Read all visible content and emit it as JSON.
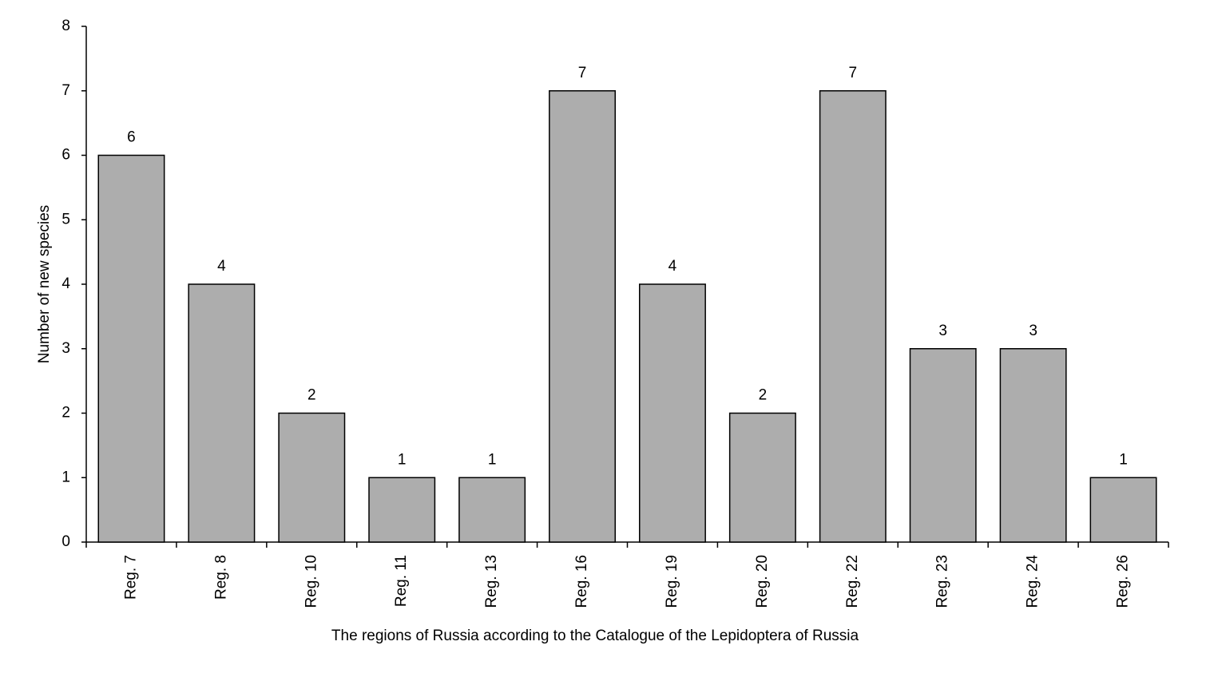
{
  "chart_data": {
    "type": "bar",
    "x_label": "The regions of Russia according to the Catalogue of the Lepidoptera of Russia",
    "y_label": "Number of new species",
    "categories": [
      "Reg. 7",
      "Reg. 8",
      "Reg. 10",
      "Reg. 11",
      "Reg. 13",
      "Reg. 16",
      "Reg. 19",
      "Reg. 20",
      "Reg. 22",
      "Reg. 23",
      "Reg. 24",
      "Reg. 26"
    ],
    "values": [
      6,
      4,
      2,
      1,
      1,
      7,
      4,
      2,
      7,
      3,
      3,
      1
    ],
    "color": "#adadad",
    "ylim": [
      0,
      8
    ],
    "yticks": [
      0,
      1,
      2,
      3,
      4,
      5,
      6,
      7,
      8
    ],
    "grid": false,
    "data_labels": true
  }
}
